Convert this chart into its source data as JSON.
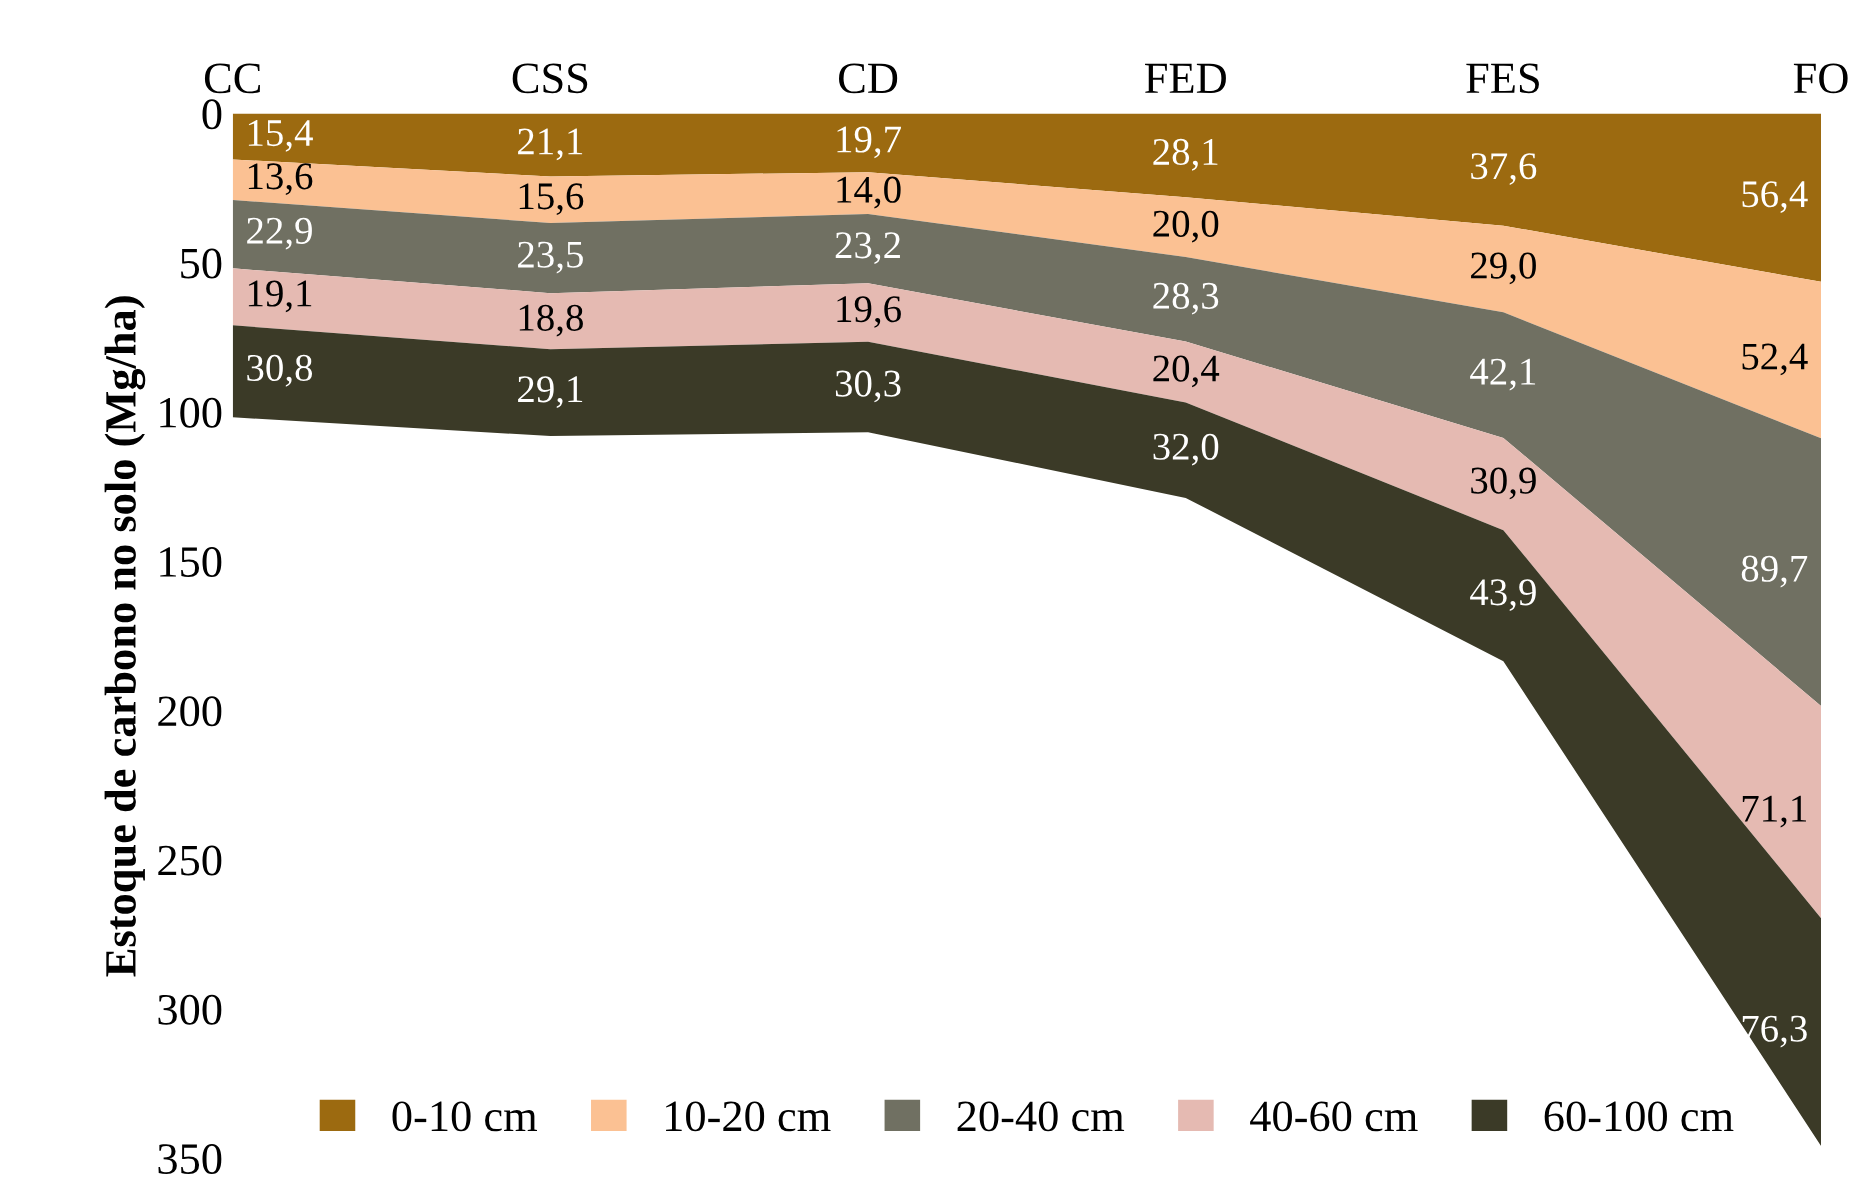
{
  "chart_data": {
    "type": "area",
    "stacked": true,
    "ylabel": "Estoque de carbono no solo (Mg/ha)",
    "categories": [
      "CC",
      "CSS",
      "CD",
      "FED",
      "FES",
      "FO"
    ],
    "ylim": [
      350,
      0
    ],
    "yticks": [
      0,
      50,
      100,
      150,
      200,
      250,
      300,
      350
    ],
    "grid": false,
    "legend": "bottom",
    "series": [
      {
        "name": "0-10 cm",
        "color": "#9c6a10",
        "values": [
          15.4,
          21.1,
          19.7,
          28.1,
          37.6,
          56.4
        ],
        "value_labels": [
          "15,4",
          "21,1",
          "19,7",
          "28,1",
          "37,6",
          "56,4"
        ]
      },
      {
        "name": "10-20 cm",
        "color": "#fbc193",
        "values": [
          13.6,
          15.6,
          14.0,
          20.0,
          29.0,
          52.4
        ],
        "value_labels": [
          "13,6",
          "15,6",
          "14,0",
          "20,0",
          "29,0",
          "52,4"
        ]
      },
      {
        "name": "20-40 cm",
        "color": "#707062",
        "values": [
          22.9,
          23.5,
          23.2,
          28.3,
          42.1,
          89.7
        ],
        "value_labels": [
          "22,9",
          "23,5",
          "23,2",
          "28,3",
          "42,1",
          "89,7"
        ]
      },
      {
        "name": "40-60 cm",
        "color": "#e5bab2",
        "values": [
          19.1,
          18.8,
          19.6,
          20.4,
          30.9,
          71.1
        ],
        "value_labels": [
          "19,1",
          "18,8",
          "19,6",
          "20,4",
          "30,9",
          "71,1"
        ]
      },
      {
        "name": "60-100 cm",
        "color": "#3b3a27",
        "values": [
          30.8,
          29.1,
          30.3,
          32.0,
          43.9,
          76.3
        ],
        "value_labels": [
          "30,8",
          "29,1",
          "30,3",
          "32,0",
          "43,9",
          "76,3"
        ]
      }
    ]
  }
}
